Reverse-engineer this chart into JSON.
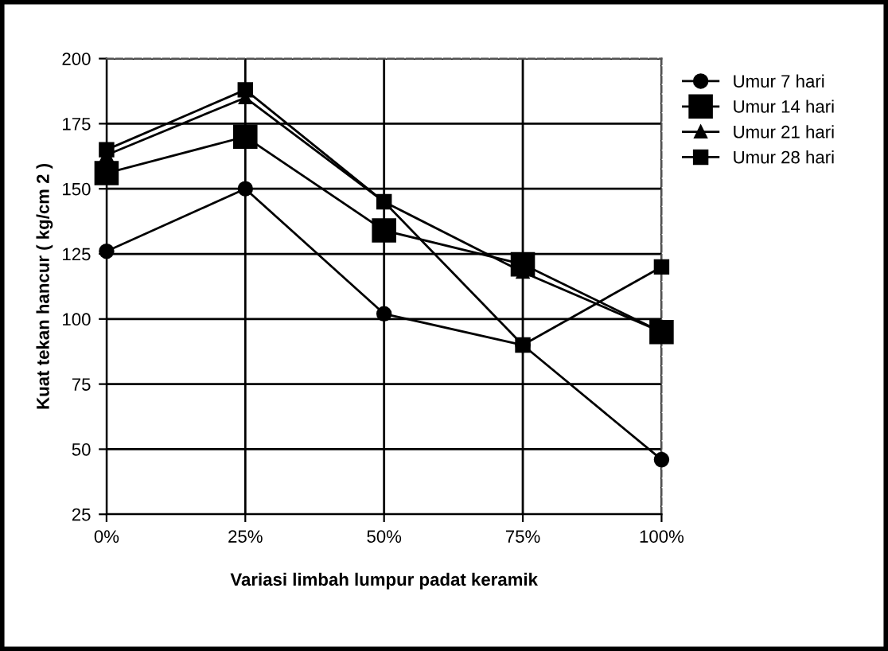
{
  "chart_data": {
    "type": "line",
    "xlabel": "Variasi limbah lumpur padat keramik",
    "ylabel": "Kuat tekan hancur ( kg/cm 2 )",
    "categories": [
      "0%",
      "25%",
      "50%",
      "75%",
      "100%"
    ],
    "series": [
      {
        "name": "Umur 7 hari",
        "color": "#000000",
        "marker": "circle",
        "values": [
          126,
          150,
          102,
          90,
          46
        ]
      },
      {
        "name": "Umur 14 hari",
        "color": "#000000",
        "marker": "square",
        "values": [
          156,
          170,
          134,
          121,
          95
        ]
      },
      {
        "name": "Umur 21 hari",
        "color": "#000000",
        "marker": "triangle",
        "values": [
          163,
          185,
          145,
          118,
          95
        ]
      },
      {
        "name": "Umur 28 hari",
        "color": "#000000",
        "marker": "square",
        "values": [
          165,
          188,
          145,
          90,
          120
        ]
      }
    ],
    "ylim": [
      25,
      200
    ],
    "yticks": [
      25,
      50,
      75,
      100,
      125,
      150,
      175,
      200
    ],
    "grid": true,
    "legend": "right",
    "line_style": "solid"
  }
}
